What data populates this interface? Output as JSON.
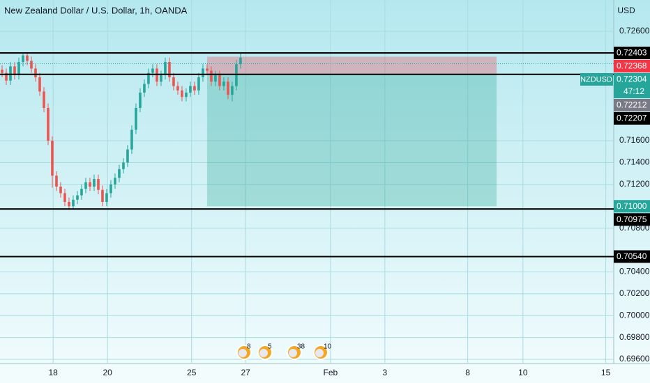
{
  "chart_data": {
    "type": "candlestick",
    "title": "New Zealand Dollar / U.S. Dollar, 1h, OANDA",
    "currency": "USD",
    "symbol": "NZDUSD",
    "countdown": "47:12",
    "up_color": "#26a69a",
    "down_color": "#ef5350",
    "grid": true,
    "open": [
      0.7225,
      0.7222,
      0.7215,
      0.7228,
      0.722,
      0.7232,
      0.7238,
      0.7233,
      0.7226,
      0.7218,
      0.7205,
      0.719,
      0.716,
      0.7128,
      0.7118,
      0.7112,
      0.7104,
      0.71,
      0.7106,
      0.711,
      0.7116,
      0.7122,
      0.7118,
      0.7125,
      0.7115,
      0.7104,
      0.7112,
      0.712,
      0.7126,
      0.7134,
      0.714,
      0.7152,
      0.717,
      0.719,
      0.7204,
      0.7212,
      0.7222,
      0.7226,
      0.7214,
      0.722,
      0.7232,
      0.7218,
      0.721,
      0.7206,
      0.72,
      0.7204,
      0.721,
      0.7206,
      0.7218,
      0.7226,
      0.7224,
      0.7214,
      0.722,
      0.721,
      0.7214,
      0.7202,
      0.721,
      0.723
    ],
    "high": [
      0.7229,
      0.7226,
      0.7232,
      0.7232,
      0.7236,
      0.7241,
      0.724,
      0.7237,
      0.723,
      0.7222,
      0.7209,
      0.7194,
      0.7164,
      0.7132,
      0.7122,
      0.7116,
      0.7108,
      0.711,
      0.7114,
      0.712,
      0.7126,
      0.7126,
      0.7129,
      0.7129,
      0.7119,
      0.7116,
      0.7124,
      0.713,
      0.7138,
      0.7144,
      0.7156,
      0.7174,
      0.7194,
      0.7208,
      0.7216,
      0.7226,
      0.723,
      0.723,
      0.7224,
      0.7236,
      0.7236,
      0.7222,
      0.7214,
      0.721,
      0.7208,
      0.7214,
      0.7214,
      0.7222,
      0.723,
      0.723,
      0.7228,
      0.7224,
      0.7224,
      0.7218,
      0.7218,
      0.7214,
      0.7234,
      0.724
    ],
    "low": [
      0.7218,
      0.7211,
      0.7211,
      0.7216,
      0.7216,
      0.7228,
      0.7229,
      0.7222,
      0.7214,
      0.7201,
      0.7186,
      0.7156,
      0.7117,
      0.7114,
      0.7108,
      0.71,
      0.7097,
      0.7098,
      0.7102,
      0.7106,
      0.7112,
      0.7114,
      0.7114,
      0.7111,
      0.71,
      0.71,
      0.7108,
      0.7116,
      0.7122,
      0.713,
      0.7136,
      0.7148,
      0.7166,
      0.7186,
      0.72,
      0.7208,
      0.7218,
      0.721,
      0.721,
      0.7216,
      0.7214,
      0.7206,
      0.7202,
      0.7196,
      0.7196,
      0.72,
      0.7202,
      0.7202,
      0.7214,
      0.722,
      0.721,
      0.721,
      0.7206,
      0.7206,
      0.7198,
      0.7196,
      0.7206,
      0.7226
    ],
    "close": [
      0.7222,
      0.7215,
      0.7228,
      0.722,
      0.7232,
      0.7238,
      0.7233,
      0.7226,
      0.7218,
      0.7205,
      0.719,
      0.716,
      0.7128,
      0.7118,
      0.7112,
      0.7104,
      0.71,
      0.7106,
      0.711,
      0.7116,
      0.7122,
      0.7118,
      0.7125,
      0.7115,
      0.7104,
      0.7112,
      0.712,
      0.7126,
      0.7134,
      0.714,
      0.7152,
      0.717,
      0.719,
      0.7204,
      0.7212,
      0.7222,
      0.7226,
      0.7214,
      0.722,
      0.7232,
      0.7218,
      0.721,
      0.7206,
      0.72,
      0.7204,
      0.721,
      0.7206,
      0.7218,
      0.7226,
      0.7224,
      0.7214,
      0.722,
      0.721,
      0.7214,
      0.7202,
      0.721,
      0.723,
      0.7236
    ],
    "xlim": [
      -0.5,
      146.2
    ],
    "xticks": [
      {
        "value": 12.2,
        "label": "18"
      },
      {
        "value": 25.2,
        "label": "20"
      },
      {
        "value": 45.3,
        "label": "25"
      },
      {
        "value": 58.2,
        "label": "27"
      },
      {
        "value": 78.5,
        "label": "Feb"
      },
      {
        "value": 91.5,
        "label": "3"
      },
      {
        "value": 111.3,
        "label": "8"
      },
      {
        "value": 124.5,
        "label": "10"
      },
      {
        "value": 144.3,
        "label": "15"
      }
    ],
    "ylim": [
      0.69562,
      0.72887
    ],
    "yticks": [
      {
        "value": 0.726,
        "label": "0.72600"
      },
      {
        "value": 0.716,
        "label": "0.71600"
      },
      {
        "value": 0.714,
        "label": "0.71400"
      },
      {
        "value": 0.712,
        "label": "0.71200"
      },
      {
        "value": 0.708,
        "label": "0.70800"
      },
      {
        "value": 0.704,
        "label": "0.70400"
      },
      {
        "value": 0.702,
        "label": "0.70200"
      },
      {
        "value": 0.7,
        "label": "0.70000"
      },
      {
        "value": 0.698,
        "label": "0.69800"
      },
      {
        "value": 0.696,
        "label": "0.69600"
      }
    ],
    "current_price": {
      "value": 0.72304,
      "label": "0.72304"
    },
    "levels": [
      {
        "value": 0.72403,
        "label": "0.72403"
      },
      {
        "value": 0.72207,
        "label": "0.72207"
      },
      {
        "value": 0.70975,
        "label": "0.70975"
      },
      {
        "value": 0.7054,
        "label": "0.70540"
      }
    ],
    "position": {
      "x_start": 49.0,
      "x_end": 118.2,
      "stop": {
        "value": 0.72368,
        "label": "0.72368"
      },
      "entry": {
        "value": 0.72212,
        "label": "0.72212"
      },
      "target": {
        "value": 0.71,
        "label": "0.71000"
      }
    },
    "events": [
      "8",
      "5",
      "38",
      "10"
    ]
  }
}
